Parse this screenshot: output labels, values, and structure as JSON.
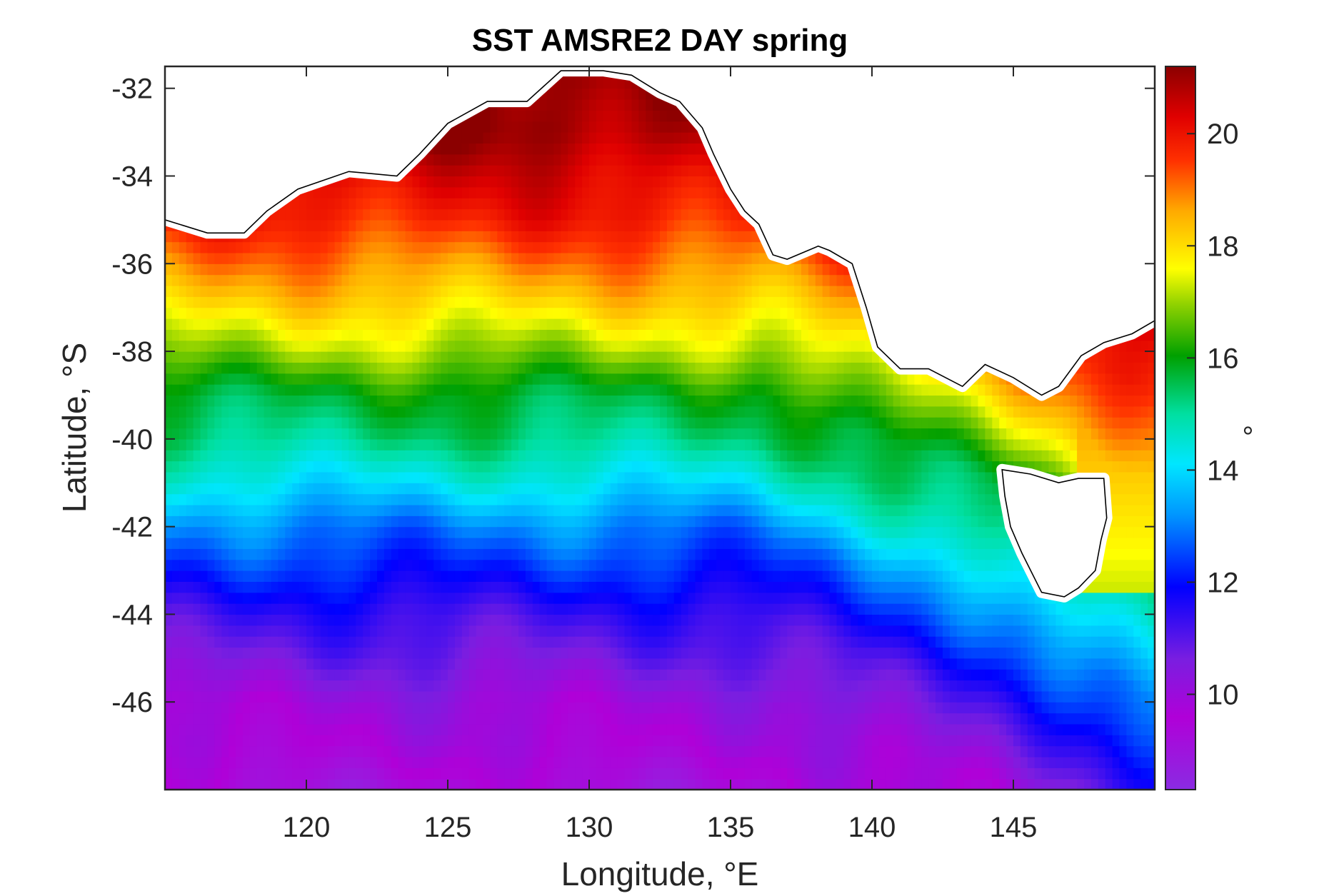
{
  "chart_data": {
    "type": "heatmap",
    "title": "SST AMSRE2 DAY spring",
    "xlabel": "Longitude, °E",
    "ylabel": "Latitude, °S",
    "colorbar_label": "°",
    "xlim": [
      115,
      150
    ],
    "ylim": [
      -48,
      -31.5
    ],
    "clim": [
      8.3,
      21.2
    ],
    "x_ticks": [
      120,
      125,
      130,
      135,
      140,
      145
    ],
    "y_ticks": [
      -32,
      -34,
      -36,
      -38,
      -40,
      -42,
      -44,
      -46
    ],
    "colorbar_ticks": [
      10,
      12,
      14,
      16,
      18,
      20
    ],
    "grid": false,
    "colormap": [
      [
        0.0,
        "#8a2be2"
      ],
      [
        0.1,
        "#b000d8"
      ],
      [
        0.18,
        "#7a1ee0"
      ],
      [
        0.28,
        "#0000ff"
      ],
      [
        0.38,
        "#0096ff"
      ],
      [
        0.45,
        "#00e6ff"
      ],
      [
        0.52,
        "#00dfa0"
      ],
      [
        0.6,
        "#00a000"
      ],
      [
        0.67,
        "#8ed100"
      ],
      [
        0.72,
        "#ffff00"
      ],
      [
        0.8,
        "#ffaa00"
      ],
      [
        0.87,
        "#ff3000"
      ],
      [
        0.93,
        "#e00000"
      ],
      [
        1.0,
        "#8b0000"
      ]
    ],
    "sst_profile_by_latitude": {
      "lat": [
        -32,
        -33,
        -34,
        -35,
        -36,
        -37,
        -38,
        -39,
        -40,
        -41,
        -42,
        -43,
        -44,
        -45,
        -46,
        -47,
        -48
      ],
      "sst": [
        21.2,
        21.0,
        20.3,
        19.8,
        18.9,
        18.0,
        17.0,
        15.8,
        15.2,
        14.2,
        13.0,
        12.2,
        11.3,
        10.7,
        10.0,
        9.7,
        9.2
      ]
    },
    "colors": {
      "land": "#ffffff",
      "coastline": "#000000",
      "axes": "#262626"
    }
  }
}
